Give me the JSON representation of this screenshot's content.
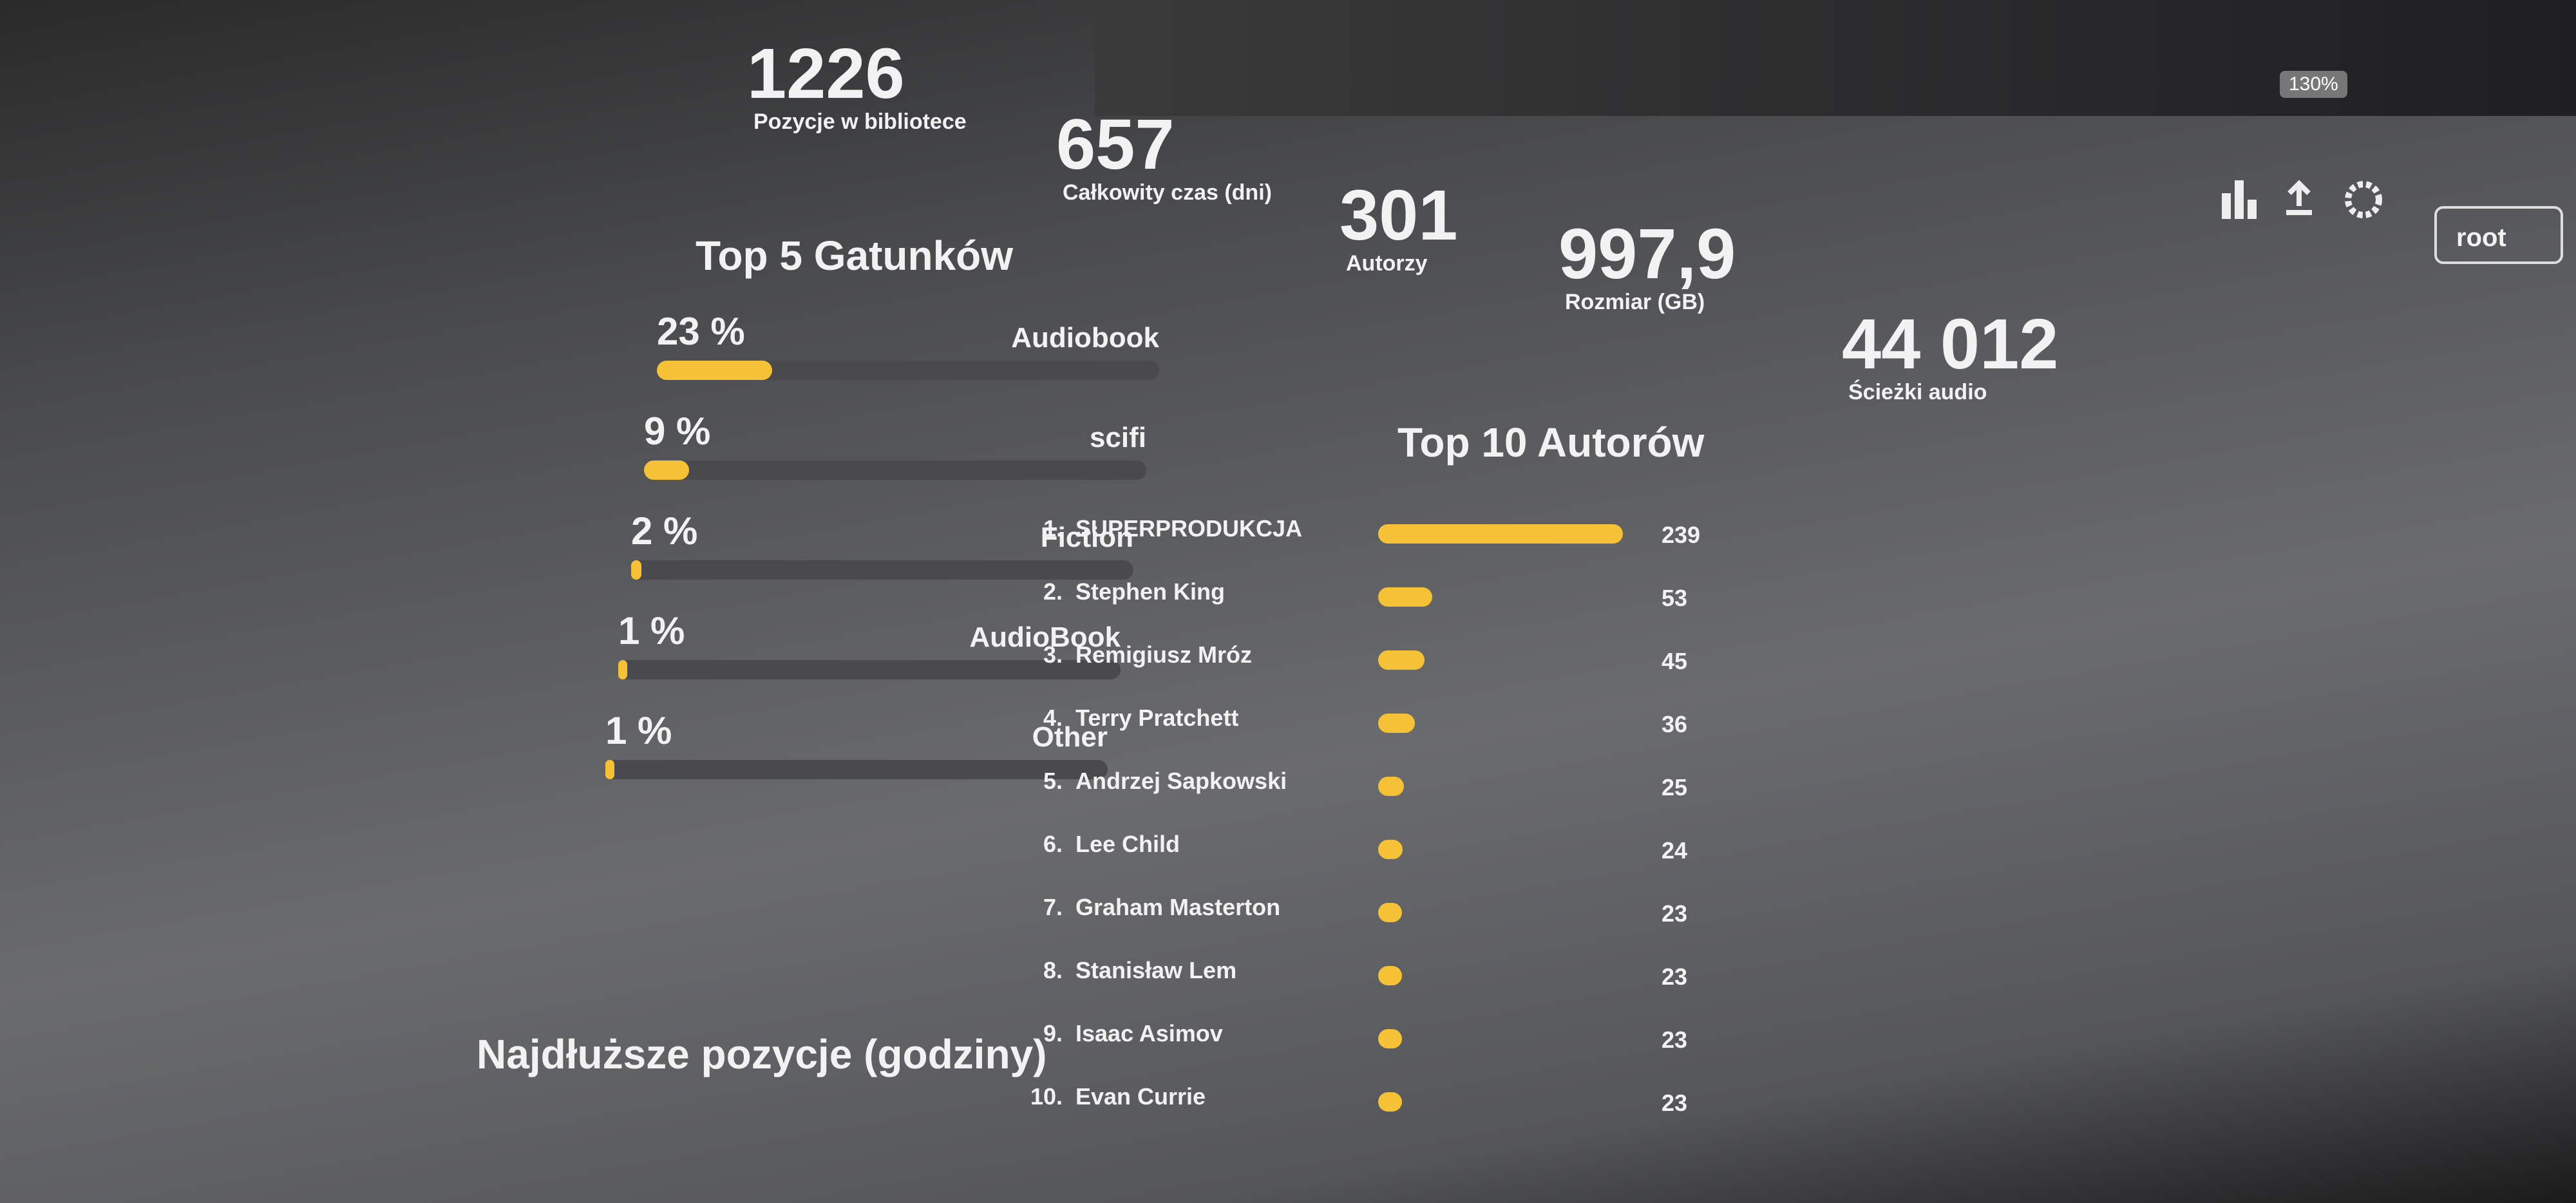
{
  "toolbar": {
    "zoom": "130%"
  },
  "user": "root",
  "stats": [
    {
      "value": "1226",
      "label": "Pozycje w bibliotece"
    },
    {
      "value": "657",
      "label": "Całkowity czas (dni)"
    },
    {
      "value": "301",
      "label": "Autorzy"
    },
    {
      "value": "997,9",
      "label": "Rozmiar (GB)"
    },
    {
      "value": "44 012",
      "label": "Ścieżki audio"
    }
  ],
  "genres": {
    "title": "Top 5 Gatunków",
    "items": [
      {
        "name": "Audiobook",
        "percent": 23,
        "percent_label": "23 %"
      },
      {
        "name": "scifi",
        "percent": 9,
        "percent_label": "9 %"
      },
      {
        "name": "Fiction",
        "percent": 2,
        "percent_label": "2 %"
      },
      {
        "name": "AudioBook",
        "percent": 1,
        "percent_label": "1 %"
      },
      {
        "name": "Other",
        "percent": 1,
        "percent_label": "1 %"
      }
    ]
  },
  "authors": {
    "title": "Top 10 Autorów",
    "items": [
      {
        "rank": "1.",
        "name": "SUPERPRODUKCJA",
        "count": 239
      },
      {
        "rank": "2.",
        "name": "Stephen King",
        "count": 53
      },
      {
        "rank": "3.",
        "name": "Remigiusz Mróz",
        "count": 45
      },
      {
        "rank": "4.",
        "name": "Terry Pratchett",
        "count": 36
      },
      {
        "rank": "5.",
        "name": "Andrzej Sapkowski",
        "count": 25
      },
      {
        "rank": "6.",
        "name": "Lee Child",
        "count": 24
      },
      {
        "rank": "7.",
        "name": "Graham Masterton",
        "count": 23
      },
      {
        "rank": "8.",
        "name": "Stanisław Lem",
        "count": 23
      },
      {
        "rank": "9.",
        "name": "Isaac Asimov",
        "count": 23
      },
      {
        "rank": "10.",
        "name": "Evan Currie",
        "count": 23
      }
    ]
  },
  "longest": {
    "title": "Najdłuższe pozycje (godziny)"
  }
}
